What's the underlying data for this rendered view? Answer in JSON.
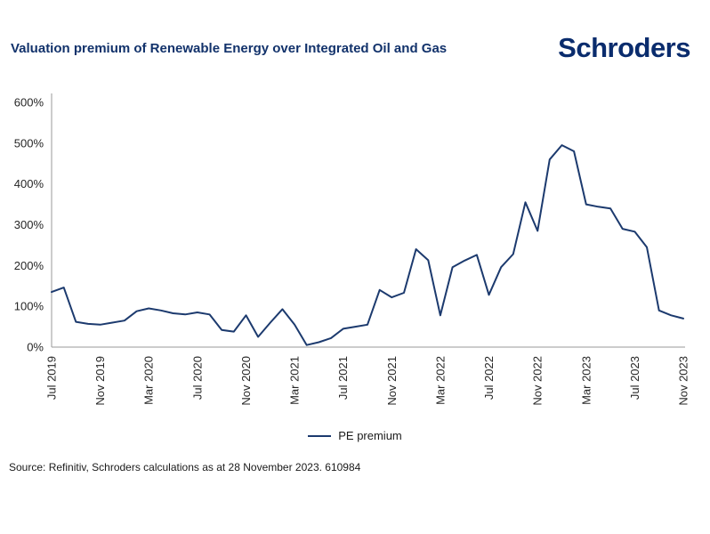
{
  "header": {
    "title": "Valuation premium of Renewable Energy over Integrated Oil and Gas",
    "logo": "Schroders"
  },
  "legend": {
    "label": "PE premium"
  },
  "source": "Source: Refinitiv, Schroders calculations as at 28 November 2023. 610984",
  "colors": {
    "brand_navy": "#0a2c6d",
    "title_navy": "#12326b",
    "line": "#1c3a6e",
    "axis": "#9a9a9a",
    "axis_text": "#262626"
  },
  "chart_data": {
    "type": "line",
    "title": "Valuation premium of Renewable Energy over Integrated Oil and Gas",
    "x": [
      "Jul 2019",
      "Aug 2019",
      "Sep 2019",
      "Oct 2019",
      "Nov 2019",
      "Dec 2019",
      "Jan 2020",
      "Feb 2020",
      "Mar 2020",
      "Apr 2020",
      "May 2020",
      "Jun 2020",
      "Jul 2020",
      "Aug 2020",
      "Sep 2020",
      "Oct 2020",
      "Nov 2020",
      "Dec 2020",
      "Jan 2021",
      "Feb 2021",
      "Mar 2021",
      "Apr 2021",
      "May 2021",
      "Jun 2021",
      "Jul 2021",
      "Aug 2021",
      "Sep 2021",
      "Oct 2021",
      "Nov 2021",
      "Dec 2021",
      "Jan 2022",
      "Feb 2022",
      "Mar 2022",
      "Apr 2022",
      "May 2022",
      "Jun 2022",
      "Jul 2022",
      "Aug 2022",
      "Sep 2022",
      "Oct 2022",
      "Nov 2022",
      "Dec 2022",
      "Jan 2023",
      "Feb 2023",
      "Mar 2023",
      "Apr 2023",
      "May 2023",
      "Jun 2023",
      "Jul 2023",
      "Aug 2023",
      "Sep 2023",
      "Oct 2023",
      "Nov 2023"
    ],
    "series": [
      {
        "name": "PE premium",
        "values": [
          135,
          146,
          62,
          57,
          55,
          60,
          65,
          88,
          95,
          90,
          83,
          80,
          85,
          80,
          42,
          38,
          78,
          25,
          60,
          93,
          55,
          5,
          12,
          22,
          45,
          50,
          55,
          140,
          122,
          133,
          240,
          213,
          78,
          196,
          212,
          226,
          128,
          196,
          228,
          355,
          285,
          460,
          495,
          480,
          350,
          344,
          340,
          290,
          283,
          245,
          90,
          78,
          70
        ]
      }
    ],
    "x_tick_labels": [
      "Jul 2019",
      "Nov 2019",
      "Mar 2020",
      "Jul 2020",
      "Nov 2020",
      "Mar 2021",
      "Jul 2021",
      "Nov 2021",
      "Mar 2022",
      "Jul 2022",
      "Nov 2022",
      "Mar 2023",
      "Jul 2023",
      "Nov 2023"
    ],
    "x_tick_step": 4,
    "ylim": [
      0,
      600
    ],
    "y_ticks": [
      "0%",
      "100%",
      "200%",
      "300%",
      "400%",
      "500%",
      "600%"
    ],
    "y_tick_values": [
      0,
      100,
      200,
      300,
      400,
      500,
      600
    ],
    "grid": false,
    "legend_position": "bottom"
  }
}
